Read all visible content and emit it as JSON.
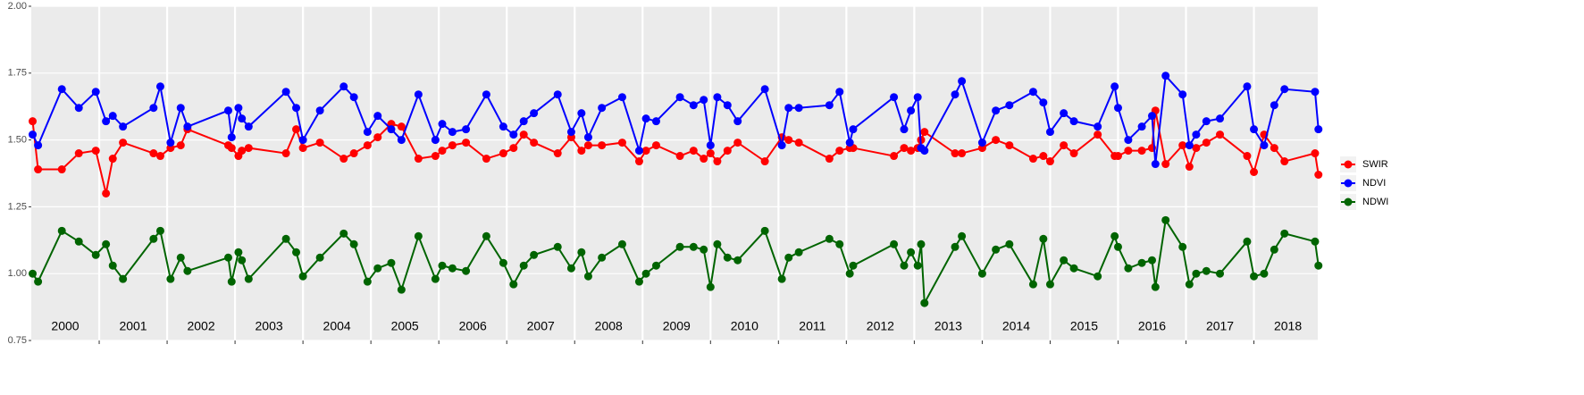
{
  "chart_data": {
    "type": "line",
    "x": [
      2000.02,
      2000.1,
      2000.45,
      2000.7,
      2000.95,
      2001.1,
      2001.2,
      2001.35,
      2001.8,
      2001.9,
      2002.05,
      2002.2,
      2002.3,
      2002.9,
      2002.95,
      2003.05,
      2003.1,
      2003.2,
      2003.75,
      2003.9,
      2004.0,
      2004.25,
      2004.6,
      2004.75,
      2004.95,
      2005.1,
      2005.3,
      2005.45,
      2005.7,
      2005.95,
      2006.05,
      2006.2,
      2006.4,
      2006.7,
      2006.95,
      2007.1,
      2007.25,
      2007.4,
      2007.75,
      2007.95,
      2008.1,
      2008.2,
      2008.4,
      2008.7,
      2008.95,
      2009.05,
      2009.2,
      2009.55,
      2009.75,
      2009.9,
      2010.0,
      2010.1,
      2010.25,
      2010.4,
      2010.8,
      2011.05,
      2011.15,
      2011.3,
      2011.75,
      2011.9,
      2012.05,
      2012.1,
      2012.7,
      2012.85,
      2012.95,
      2013.05,
      2013.1,
      2013.15,
      2013.6,
      2013.7,
      2014.0,
      2014.2,
      2014.4,
      2014.75,
      2014.9,
      2015.0,
      2015.2,
      2015.35,
      2015.7,
      2015.95,
      2016.0,
      2016.15,
      2016.35,
      2016.5,
      2016.55,
      2016.7,
      2016.95,
      2017.05,
      2017.15,
      2017.3,
      2017.5,
      2017.9,
      2018.0,
      2018.15,
      2018.3,
      2018.45,
      2018.9,
      2018.95
    ],
    "series": [
      {
        "name": "SWIR",
        "color": "#ff0000",
        "values": [
          1.57,
          1.39,
          1.39,
          1.45,
          1.46,
          1.3,
          1.43,
          1.49,
          1.45,
          1.44,
          1.47,
          1.48,
          1.54,
          1.48,
          1.47,
          1.44,
          1.46,
          1.47,
          1.45,
          1.54,
          1.47,
          1.49,
          1.43,
          1.45,
          1.48,
          1.51,
          1.56,
          1.55,
          1.43,
          1.44,
          1.46,
          1.48,
          1.49,
          1.43,
          1.45,
          1.47,
          1.52,
          1.49,
          1.45,
          1.51,
          1.46,
          1.48,
          1.48,
          1.49,
          1.42,
          1.46,
          1.48,
          1.44,
          1.46,
          1.43,
          1.45,
          1.42,
          1.46,
          1.49,
          1.42,
          1.51,
          1.5,
          1.49,
          1.43,
          1.46,
          1.47,
          1.47,
          1.44,
          1.47,
          1.46,
          1.47,
          1.5,
          1.53,
          1.45,
          1.45,
          1.47,
          1.5,
          1.48,
          1.43,
          1.44,
          1.42,
          1.48,
          1.45,
          1.52,
          1.44,
          1.44,
          1.46,
          1.46,
          1.47,
          1.61,
          1.41,
          1.48,
          1.4,
          1.47,
          1.49,
          1.52,
          1.44,
          1.38,
          1.52,
          1.47,
          1.42,
          1.45,
          1.37
        ]
      },
      {
        "name": "NDVI",
        "color": "#0000ff",
        "values": [
          1.52,
          1.48,
          1.69,
          1.62,
          1.68,
          1.57,
          1.59,
          1.55,
          1.62,
          1.7,
          1.49,
          1.62,
          1.55,
          1.61,
          1.51,
          1.62,
          1.58,
          1.55,
          1.68,
          1.62,
          1.5,
          1.61,
          1.7,
          1.66,
          1.53,
          1.59,
          1.54,
          1.5,
          1.67,
          1.5,
          1.56,
          1.53,
          1.54,
          1.67,
          1.55,
          1.52,
          1.57,
          1.6,
          1.67,
          1.53,
          1.6,
          1.51,
          1.62,
          1.66,
          1.46,
          1.58,
          1.57,
          1.66,
          1.63,
          1.65,
          1.48,
          1.66,
          1.63,
          1.57,
          1.69,
          1.48,
          1.62,
          1.62,
          1.63,
          1.68,
          1.49,
          1.54,
          1.66,
          1.54,
          1.61,
          1.66,
          1.47,
          1.46,
          1.67,
          1.72,
          1.49,
          1.61,
          1.63,
          1.68,
          1.64,
          1.53,
          1.6,
          1.57,
          1.55,
          1.7,
          1.62,
          1.5,
          1.55,
          1.59,
          1.41,
          1.74,
          1.67,
          1.48,
          1.52,
          1.57,
          1.58,
          1.7,
          1.54,
          1.48,
          1.63,
          1.69,
          1.68,
          1.54
        ]
      },
      {
        "name": "NDWI",
        "color": "#006400",
        "values": [
          1.0,
          0.97,
          1.16,
          1.12,
          1.07,
          1.11,
          1.03,
          0.98,
          1.13,
          1.16,
          0.98,
          1.06,
          1.01,
          1.06,
          0.97,
          1.08,
          1.05,
          0.98,
          1.13,
          1.08,
          0.99,
          1.06,
          1.15,
          1.11,
          0.97,
          1.02,
          1.04,
          0.94,
          1.14,
          0.98,
          1.03,
          1.02,
          1.01,
          1.14,
          1.04,
          0.96,
          1.03,
          1.07,
          1.1,
          1.02,
          1.08,
          0.99,
          1.06,
          1.11,
          0.97,
          1.0,
          1.03,
          1.1,
          1.1,
          1.09,
          0.95,
          1.11,
          1.06,
          1.05,
          1.16,
          0.98,
          1.06,
          1.08,
          1.13,
          1.11,
          1.0,
          1.03,
          1.11,
          1.03,
          1.08,
          1.03,
          1.11,
          0.89,
          1.1,
          1.14,
          1.0,
          1.09,
          1.11,
          0.96,
          1.13,
          0.96,
          1.05,
          1.02,
          0.99,
          1.14,
          1.1,
          1.02,
          1.04,
          1.05,
          0.95,
          1.2,
          1.1,
          0.96,
          1.0,
          1.01,
          1.0,
          1.12,
          0.99,
          1.0,
          1.09,
          1.15,
          1.12,
          1.03
        ]
      }
    ],
    "xlim": [
      2000,
      2018.94
    ],
    "xticks": [
      2001,
      2002,
      2003,
      2004,
      2005,
      2006,
      2007,
      2008,
      2009,
      2010,
      2011,
      2012,
      2013,
      2014,
      2015,
      2016,
      2017,
      2018
    ],
    "year_labels": [
      {
        "value": 2000.5,
        "label": "2000"
      },
      {
        "value": 2001.5,
        "label": "2001"
      },
      {
        "value": 2002.5,
        "label": "2002"
      },
      {
        "value": 2003.5,
        "label": "2003"
      },
      {
        "value": 2004.5,
        "label": "2004"
      },
      {
        "value": 2005.5,
        "label": "2005"
      },
      {
        "value": 2006.5,
        "label": "2006"
      },
      {
        "value": 2007.5,
        "label": "2007"
      },
      {
        "value": 2008.5,
        "label": "2008"
      },
      {
        "value": 2009.5,
        "label": "2009"
      },
      {
        "value": 2010.5,
        "label": "2010"
      },
      {
        "value": 2011.5,
        "label": "2011"
      },
      {
        "value": 2012.5,
        "label": "2012"
      },
      {
        "value": 2013.5,
        "label": "2013"
      },
      {
        "value": 2014.5,
        "label": "2014"
      },
      {
        "value": 2015.5,
        "label": "2015"
      },
      {
        "value": 2016.5,
        "label": "2016"
      },
      {
        "value": 2017.5,
        "label": "2017"
      },
      {
        "value": 2018.5,
        "label": "2018"
      }
    ],
    "ylim": [
      0.75,
      2.0
    ],
    "yticks": [
      0.75,
      {
        "value": 1,
        "label": "1.00"
      },
      1.25,
      {
        "value": 1.5,
        "label": "1.50"
      },
      1.75,
      {
        "value": 2,
        "label": "2.00"
      }
    ],
    "grid": true,
    "legend_position": "right"
  }
}
